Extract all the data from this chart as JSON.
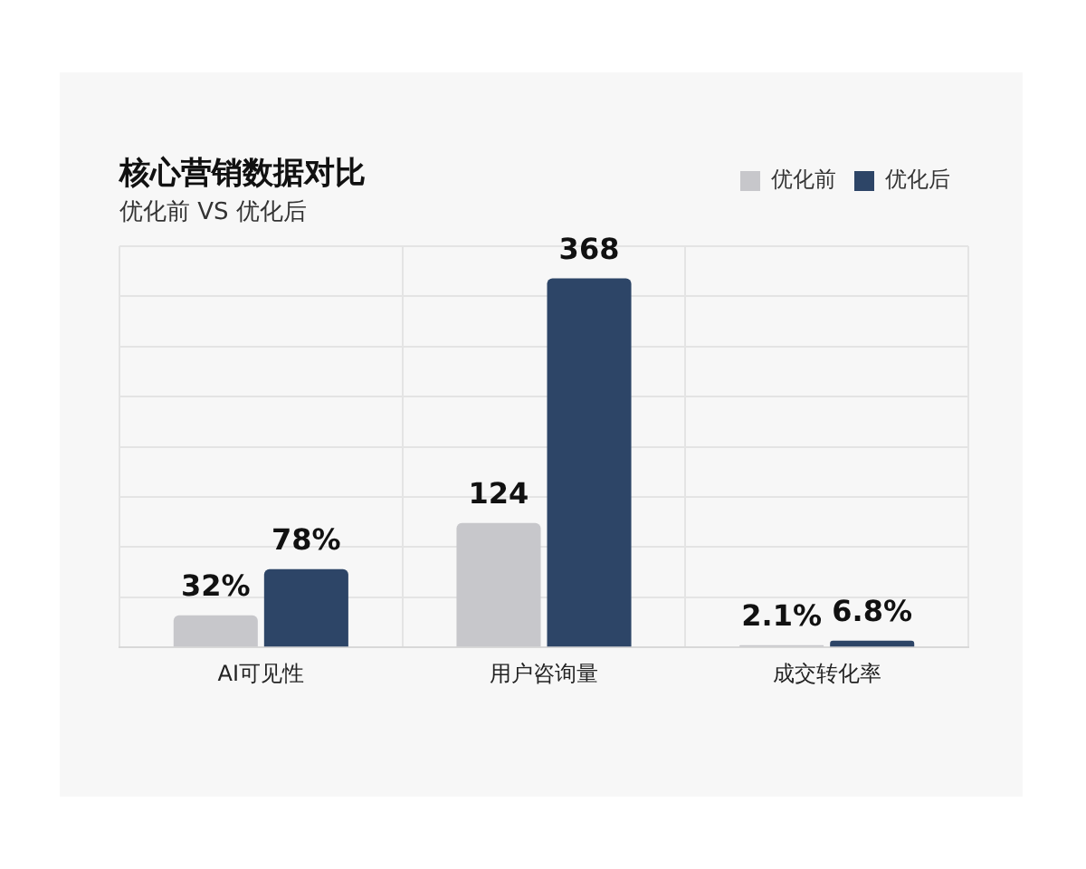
{
  "chart_data": {
    "type": "bar",
    "title": "核心营销数据对比",
    "subtitle": "优化前 VS 优化后",
    "categories": [
      "AI可见性",
      "用户咨询量",
      "成交转化率"
    ],
    "series": [
      {
        "name": "优化前",
        "color": "#c7c7cb",
        "values": [
          32,
          124,
          2.1
        ],
        "value_labels": [
          "32%",
          "124",
          "2.1%"
        ]
      },
      {
        "name": "优化后",
        "color": "#2d4567",
        "values": [
          78,
          368,
          6.8
        ],
        "value_labels": [
          "78%",
          "368",
          "6.8%"
        ]
      }
    ],
    "grid": true,
    "legend": "top right",
    "tick_labels": "x"
  }
}
